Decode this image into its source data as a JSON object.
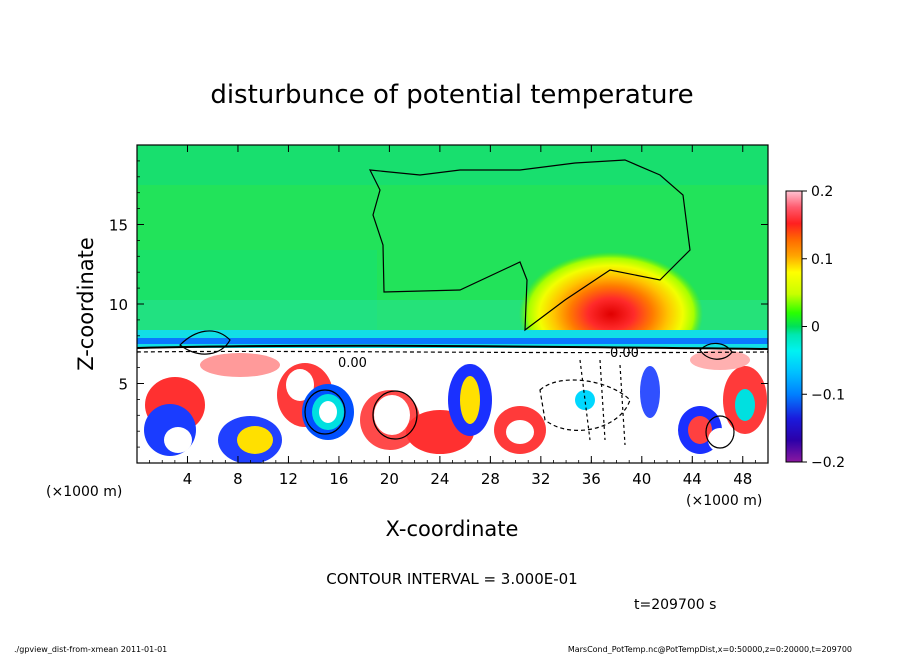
{
  "chart_data": {
    "type": "heatmap",
    "title": "disturbunce of potential temperature",
    "xlabel": "X-coordinate",
    "ylabel": "Z-coordinate",
    "x_unit": "(×1000 m)",
    "x_unit_right": "(×1000 m)",
    "xlim": [
      0,
      50
    ],
    "ylim": [
      0,
      20
    ],
    "x_ticks": [
      4,
      8,
      12,
      16,
      20,
      24,
      28,
      32,
      36,
      40,
      44,
      48
    ],
    "y_ticks": [
      5,
      10,
      15
    ],
    "colorbar": {
      "ticks": [
        0.2,
        0.1,
        0,
        -0.1,
        -0.2
      ],
      "tick_labels": [
        "0.2",
        "0.1",
        "0",
        "−0.1",
        "−0.2"
      ],
      "range": [
        -0.2,
        0.2
      ],
      "colors": [
        "#ffc4d3",
        "#ff5a6e",
        "#ff1f1f",
        "#ff6a00",
        "#ffa500",
        "#ffd500",
        "#ffff00",
        "#c8ff00",
        "#7cff00",
        "#29ff00",
        "#00e05a",
        "#00e7b0",
        "#00f2f2",
        "#00c0ff",
        "#0080ff",
        "#0040ff",
        "#1a1adc",
        "#2c00a8",
        "#56009c",
        "#8a18a0"
      ]
    },
    "contour_labels": [
      {
        "text": "0.00",
        "x": 17.5,
        "z": 6.5
      },
      {
        "text": "0.00",
        "x": 38.5,
        "z": 6.9
      }
    ],
    "contour_interval": "CONTOUR INTERVAL = 3.000E-01",
    "time": "t=209700 s",
    "color_fields": {
      "warm_blob": {
        "center": [
          37.5,
          8.2
        ],
        "peak": 0.18
      },
      "upper_region_mean": 0.02,
      "inversion_layer_z": 7.3,
      "lower_layer_turbulent": true
    }
  },
  "footer": {
    "left": "./gpview_dist-from-xmean  2011-01-01",
    "right": "MarsCond_PotTemp.nc@PotTempDist,x=0:50000,z=0:20000,t=209700"
  },
  "colors": {
    "background": "#ffffff",
    "upper_green": "#22e35a",
    "cyan_band": "#12dfe6"
  }
}
